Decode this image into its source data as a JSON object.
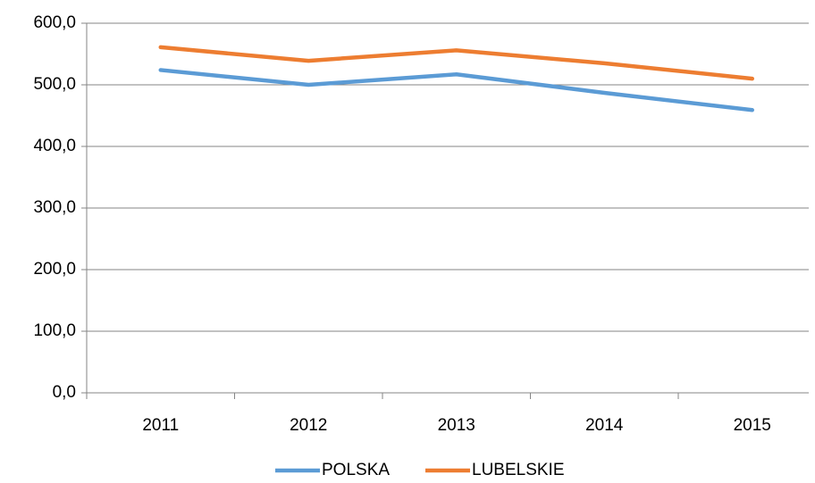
{
  "chart_data": {
    "type": "line",
    "categories": [
      "2011",
      "2012",
      "2013",
      "2014",
      "2015"
    ],
    "series": [
      {
        "name": "POLSKA",
        "color": "#5b9bd5",
        "values": [
          524,
          500,
          517,
          487,
          459
        ]
      },
      {
        "name": "LUBELSKIE",
        "color": "#ed7d31",
        "values": [
          561,
          539,
          556,
          535,
          510
        ]
      }
    ],
    "ylim": [
      0,
      600
    ],
    "yticks": [
      {
        "value": 0,
        "label": "0,0"
      },
      {
        "value": 100,
        "label": "100,0"
      },
      {
        "value": 200,
        "label": "200,0"
      },
      {
        "value": 300,
        "label": "300,0"
      },
      {
        "value": 400,
        "label": "400,0"
      },
      {
        "value": 500,
        "label": "500,0"
      },
      {
        "value": 600,
        "label": "600,0"
      }
    ],
    "grid": true,
    "legend": "bottom"
  }
}
